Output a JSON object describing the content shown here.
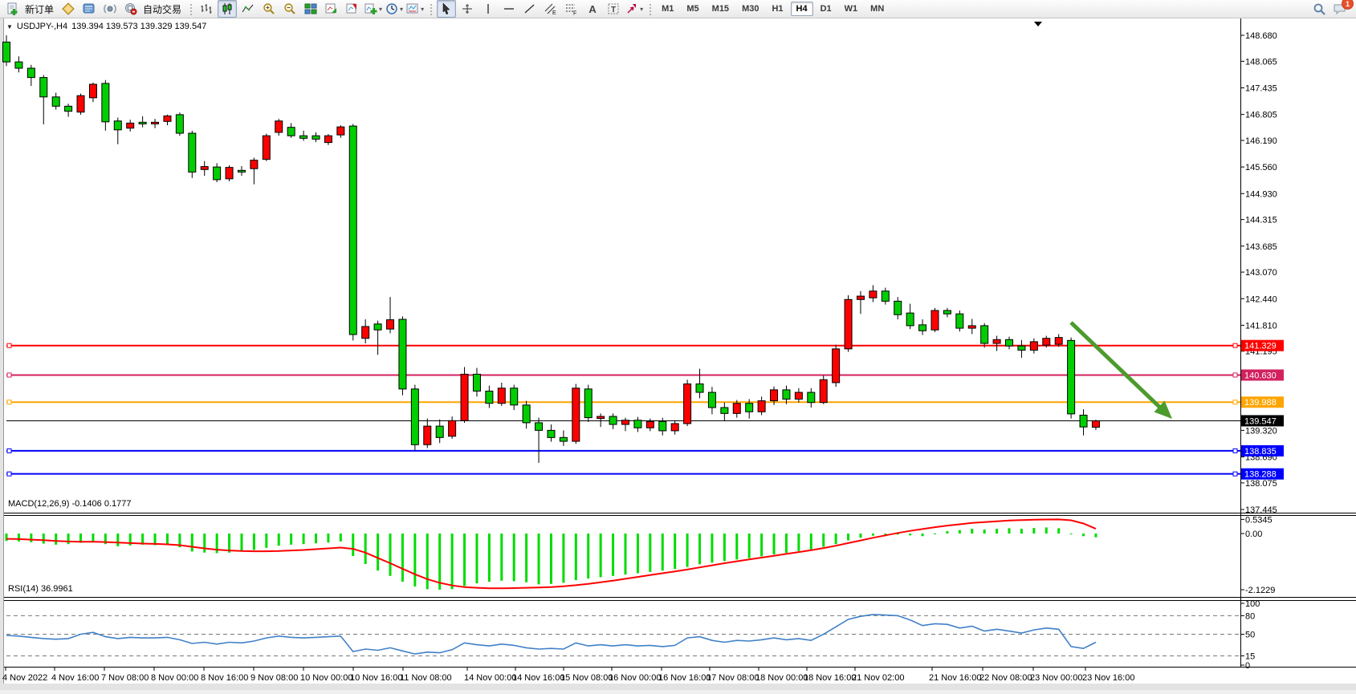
{
  "toolbar": {
    "new_order": "新订单",
    "auto_trading": "自动交易",
    "timeframes": [
      "M1",
      "M5",
      "M15",
      "M30",
      "H1",
      "H4",
      "D1",
      "W1",
      "MN"
    ],
    "active_timeframe": "H4",
    "channel_letter": "E",
    "fibo_letter": "F",
    "text_tool": "A",
    "label_tool": "T",
    "notification_count": "1"
  },
  "chart": {
    "symbol_period": "USDJPY-,H4",
    "ohlc_display": "139.394 139.573 139.329 139.547"
  },
  "chart_data": {
    "type": "candlestick",
    "symbol": "USDJPY",
    "timeframe": "H4",
    "up_color": "#FF0000",
    "down_color": "#00CE00",
    "candles_ohlc": [
      [
        148.52,
        148.68,
        147.95,
        148.05
      ],
      [
        148.05,
        148.18,
        147.8,
        147.9
      ],
      [
        147.9,
        147.98,
        147.48,
        147.68
      ],
      [
        147.68,
        147.74,
        146.57,
        147.22
      ],
      [
        147.22,
        147.32,
        146.92,
        147.0
      ],
      [
        147.0,
        147.06,
        146.75,
        146.88
      ],
      [
        146.86,
        147.3,
        146.8,
        147.25
      ],
      [
        147.2,
        147.56,
        147.1,
        147.52
      ],
      [
        147.54,
        147.62,
        146.42,
        146.63
      ],
      [
        146.65,
        146.73,
        146.1,
        146.44
      ],
      [
        146.48,
        146.68,
        146.4,
        146.6
      ],
      [
        146.62,
        146.76,
        146.5,
        146.58
      ],
      [
        146.58,
        146.7,
        146.48,
        146.62
      ],
      [
        146.64,
        146.8,
        146.55,
        146.77
      ],
      [
        146.8,
        146.85,
        146.3,
        146.36
      ],
      [
        146.36,
        146.42,
        145.3,
        145.44
      ],
      [
        145.5,
        145.7,
        145.35,
        145.57
      ],
      [
        145.56,
        145.65,
        145.2,
        145.26
      ],
      [
        145.28,
        145.6,
        145.22,
        145.55
      ],
      [
        145.48,
        145.58,
        145.35,
        145.44
      ],
      [
        145.52,
        145.78,
        145.15,
        145.72
      ],
      [
        145.74,
        146.35,
        145.7,
        146.3
      ],
      [
        146.38,
        146.7,
        146.3,
        146.65
      ],
      [
        146.5,
        146.6,
        146.25,
        146.3
      ],
      [
        146.3,
        146.42,
        146.18,
        146.24
      ],
      [
        146.3,
        146.38,
        146.15,
        146.22
      ],
      [
        146.14,
        146.34,
        146.08,
        146.3
      ],
      [
        146.32,
        146.55,
        146.25,
        146.51
      ],
      [
        146.53,
        146.58,
        141.45,
        141.59
      ],
      [
        141.5,
        141.95,
        141.38,
        141.78
      ],
      [
        141.84,
        141.92,
        141.11,
        141.7
      ],
      [
        141.72,
        142.48,
        141.62,
        141.94
      ],
      [
        141.95,
        142.02,
        140.15,
        140.3
      ],
      [
        140.3,
        140.4,
        138.84,
        138.98
      ],
      [
        138.98,
        139.6,
        138.9,
        139.42
      ],
      [
        139.42,
        139.58,
        139.02,
        139.15
      ],
      [
        139.18,
        139.65,
        139.12,
        139.55
      ],
      [
        139.55,
        140.82,
        139.5,
        140.65
      ],
      [
        140.65,
        140.8,
        140.12,
        140.25
      ],
      [
        140.25,
        140.38,
        139.85,
        139.96
      ],
      [
        139.96,
        140.45,
        139.9,
        140.32
      ],
      [
        140.32,
        140.4,
        139.8,
        139.92
      ],
      [
        139.92,
        140.02,
        139.36,
        139.5
      ],
      [
        139.5,
        139.62,
        138.55,
        139.32
      ],
      [
        139.32,
        139.46,
        139.05,
        139.15
      ],
      [
        139.15,
        139.32,
        138.95,
        139.06
      ],
      [
        139.06,
        140.42,
        139.0,
        140.32
      ],
      [
        140.3,
        140.4,
        139.52,
        139.62
      ],
      [
        139.6,
        139.72,
        139.4,
        139.65
      ],
      [
        139.65,
        139.72,
        139.35,
        139.46
      ],
      [
        139.46,
        139.62,
        139.3,
        139.56
      ],
      [
        139.56,
        139.64,
        139.28,
        139.38
      ],
      [
        139.38,
        139.6,
        139.3,
        139.53
      ],
      [
        139.53,
        139.62,
        139.2,
        139.31
      ],
      [
        139.31,
        139.56,
        139.22,
        139.48
      ],
      [
        139.48,
        140.52,
        139.42,
        140.42
      ],
      [
        140.42,
        140.78,
        140.08,
        140.22
      ],
      [
        140.22,
        140.35,
        139.7,
        139.86
      ],
      [
        139.86,
        139.98,
        139.55,
        139.72
      ],
      [
        139.72,
        140.04,
        139.62,
        139.96
      ],
      [
        139.96,
        140.06,
        139.6,
        139.76
      ],
      [
        139.76,
        140.12,
        139.68,
        140.02
      ],
      [
        140.02,
        140.36,
        139.92,
        140.28
      ],
      [
        140.28,
        140.38,
        139.94,
        140.06
      ],
      [
        140.06,
        140.32,
        139.98,
        140.22
      ],
      [
        140.22,
        140.32,
        139.86,
        139.98
      ],
      [
        139.98,
        140.62,
        139.94,
        140.52
      ],
      [
        140.45,
        141.35,
        140.35,
        141.25
      ],
      [
        141.25,
        142.52,
        141.18,
        142.42
      ],
      [
        142.42,
        142.62,
        142.08,
        142.5
      ],
      [
        142.46,
        142.76,
        142.36,
        142.62
      ],
      [
        142.62,
        142.7,
        142.3,
        142.38
      ],
      [
        142.38,
        142.48,
        141.95,
        142.06
      ],
      [
        142.1,
        142.32,
        141.72,
        141.8
      ],
      [
        141.82,
        141.95,
        141.58,
        141.68
      ],
      [
        141.7,
        142.22,
        141.65,
        142.16
      ],
      [
        142.16,
        142.22,
        142.0,
        142.08
      ],
      [
        142.08,
        142.16,
        141.66,
        141.74
      ],
      [
        141.74,
        141.96,
        141.6,
        141.8
      ],
      [
        141.8,
        141.86,
        141.28,
        141.38
      ],
      [
        141.38,
        141.56,
        141.2,
        141.47
      ],
      [
        141.47,
        141.54,
        141.24,
        141.32
      ],
      [
        141.32,
        141.46,
        141.04,
        141.22
      ],
      [
        141.22,
        141.5,
        141.14,
        141.42
      ],
      [
        141.34,
        141.56,
        141.28,
        141.5
      ],
      [
        141.36,
        141.6,
        141.3,
        141.52
      ],
      [
        141.45,
        141.52,
        139.6,
        139.71
      ],
      [
        139.68,
        139.82,
        139.2,
        139.4
      ],
      [
        139.394,
        139.573,
        139.329,
        139.547
      ]
    ],
    "price_axis_ticks": [
      148.68,
      148.065,
      147.435,
      146.805,
      146.19,
      145.56,
      144.93,
      144.315,
      143.685,
      143.07,
      142.44,
      141.81,
      141.195,
      139.32,
      138.69,
      138.075,
      137.445
    ],
    "levels": [
      {
        "label": "141.329",
        "price": 141.329,
        "color": "#FF0000"
      },
      {
        "label": "140.630",
        "price": 140.63,
        "color": "#D2215F"
      },
      {
        "label": "139.988",
        "price": 139.988,
        "color": "#FFA500"
      },
      {
        "label": "138.835",
        "price": 138.835,
        "color": "#0000FF"
      },
      {
        "label": "138.288",
        "price": 138.288,
        "color": "#0000FF"
      }
    ],
    "bid_line": {
      "label": "139.547",
      "price": 139.547,
      "color": "#000000"
    },
    "trend_arrow": {
      "color": "#4C9B2D"
    },
    "macd": {
      "label": "MACD(12,26,9) -0.1406 0.1777",
      "axis_ticks": [
        "0.5345",
        "0.00",
        "-2.1229"
      ],
      "axis_tick_values": [
        0.5345,
        0,
        -2.1229
      ],
      "hist_color": "#00DC00",
      "signal_color": "#FF0000",
      "histogram": [
        -0.28,
        -0.3,
        -0.33,
        -0.38,
        -0.42,
        -0.4,
        -0.35,
        -0.3,
        -0.4,
        -0.48,
        -0.45,
        -0.42,
        -0.44,
        -0.42,
        -0.52,
        -0.68,
        -0.72,
        -0.74,
        -0.72,
        -0.68,
        -0.62,
        -0.54,
        -0.46,
        -0.42,
        -0.4,
        -0.37,
        -0.34,
        -0.3,
        -0.85,
        -1.15,
        -1.4,
        -1.6,
        -1.82,
        -2.0,
        -2.1,
        -2.12,
        -2.1,
        -1.98,
        -1.88,
        -1.82,
        -1.78,
        -1.8,
        -1.84,
        -1.92,
        -1.9,
        -1.86,
        -1.76,
        -1.7,
        -1.65,
        -1.6,
        -1.55,
        -1.5,
        -1.45,
        -1.4,
        -1.34,
        -1.26,
        -1.16,
        -1.1,
        -1.04,
        -0.98,
        -0.93,
        -0.86,
        -0.79,
        -0.73,
        -0.66,
        -0.6,
        -0.5,
        -0.4,
        -0.26,
        -0.16,
        -0.08,
        -0.05,
        -0.04,
        -0.07,
        -0.1,
        -0.01,
        0.09,
        0.13,
        0.18,
        0.15,
        0.18,
        0.2,
        0.18,
        0.21,
        0.23,
        0.2,
        -0.02,
        -0.1,
        -0.1406
      ],
      "signal": [
        -0.2,
        -0.21,
        -0.23,
        -0.25,
        -0.28,
        -0.3,
        -0.31,
        -0.31,
        -0.32,
        -0.34,
        -0.36,
        -0.38,
        -0.39,
        -0.41,
        -0.44,
        -0.5,
        -0.56,
        -0.61,
        -0.64,
        -0.66,
        -0.67,
        -0.67,
        -0.66,
        -0.64,
        -0.62,
        -0.59,
        -0.56,
        -0.53,
        -0.58,
        -0.72,
        -0.92,
        -1.12,
        -1.33,
        -1.54,
        -1.72,
        -1.86,
        -1.96,
        -2.02,
        -2.05,
        -2.07,
        -2.07,
        -2.06,
        -2.05,
        -2.04,
        -2.02,
        -1.99,
        -1.95,
        -1.9,
        -1.84,
        -1.78,
        -1.71,
        -1.64,
        -1.57,
        -1.5,
        -1.43,
        -1.36,
        -1.28,
        -1.2,
        -1.12,
        -1.05,
        -0.98,
        -0.91,
        -0.84,
        -0.77,
        -0.7,
        -0.63,
        -0.55,
        -0.46,
        -0.36,
        -0.26,
        -0.16,
        -0.07,
        0.02,
        0.1,
        0.17,
        0.24,
        0.3,
        0.35,
        0.4,
        0.43,
        0.46,
        0.49,
        0.51,
        0.52,
        0.53,
        0.5345,
        0.5,
        0.38,
        0.1777
      ]
    },
    "rsi": {
      "label": "RSI(14) 36.9961",
      "color": "#4080C8",
      "axis_ticks": [
        "100",
        "80",
        "50",
        "15",
        "0"
      ],
      "axis_tick_values": [
        100,
        80,
        50,
        15,
        0
      ],
      "level_lines": [
        80,
        50,
        15
      ],
      "values": [
        48,
        47,
        45,
        43,
        42,
        43,
        50,
        53,
        46,
        43,
        45,
        44,
        44,
        45,
        41,
        35,
        37,
        34,
        37,
        36,
        39,
        44,
        47,
        45,
        44,
        45,
        46,
        47,
        22,
        26,
        24,
        28,
        23,
        18,
        21,
        20,
        25,
        36,
        33,
        31,
        34,
        32,
        28,
        26,
        27,
        26,
        36,
        31,
        33,
        31,
        33,
        31,
        32,
        30,
        32,
        44,
        46,
        40,
        37,
        40,
        39,
        41,
        44,
        41,
        43,
        40,
        50,
        62,
        74,
        79,
        82,
        81,
        80,
        73,
        64,
        67,
        66,
        60,
        63,
        55,
        58,
        55,
        52,
        57,
        60,
        58,
        30,
        27,
        36.9961
      ]
    },
    "time_axis": {
      "labels": [
        "4 Nov 2022",
        "4 Nov 16:00",
        "7 Nov 08:00",
        "8 Nov 00:00",
        "8 Nov 16:00",
        "9 Nov 08:00",
        "10 Nov 00:00",
        "10 Nov 16:00",
        "11 Nov 08:00",
        "14 Nov 00:00",
        "14 Nov 16:00",
        "15 Nov 08:00",
        "16 Nov 00:00",
        "16 Nov 16:00",
        "17 Nov 08:00",
        "18 Nov 00:00",
        "18 Nov 16:00",
        "21 Nov 02:00",
        "21 Nov 16:00",
        "22 Nov 08:00",
        "23 Nov 00:00",
        "23 Nov 16:00"
      ]
    }
  }
}
